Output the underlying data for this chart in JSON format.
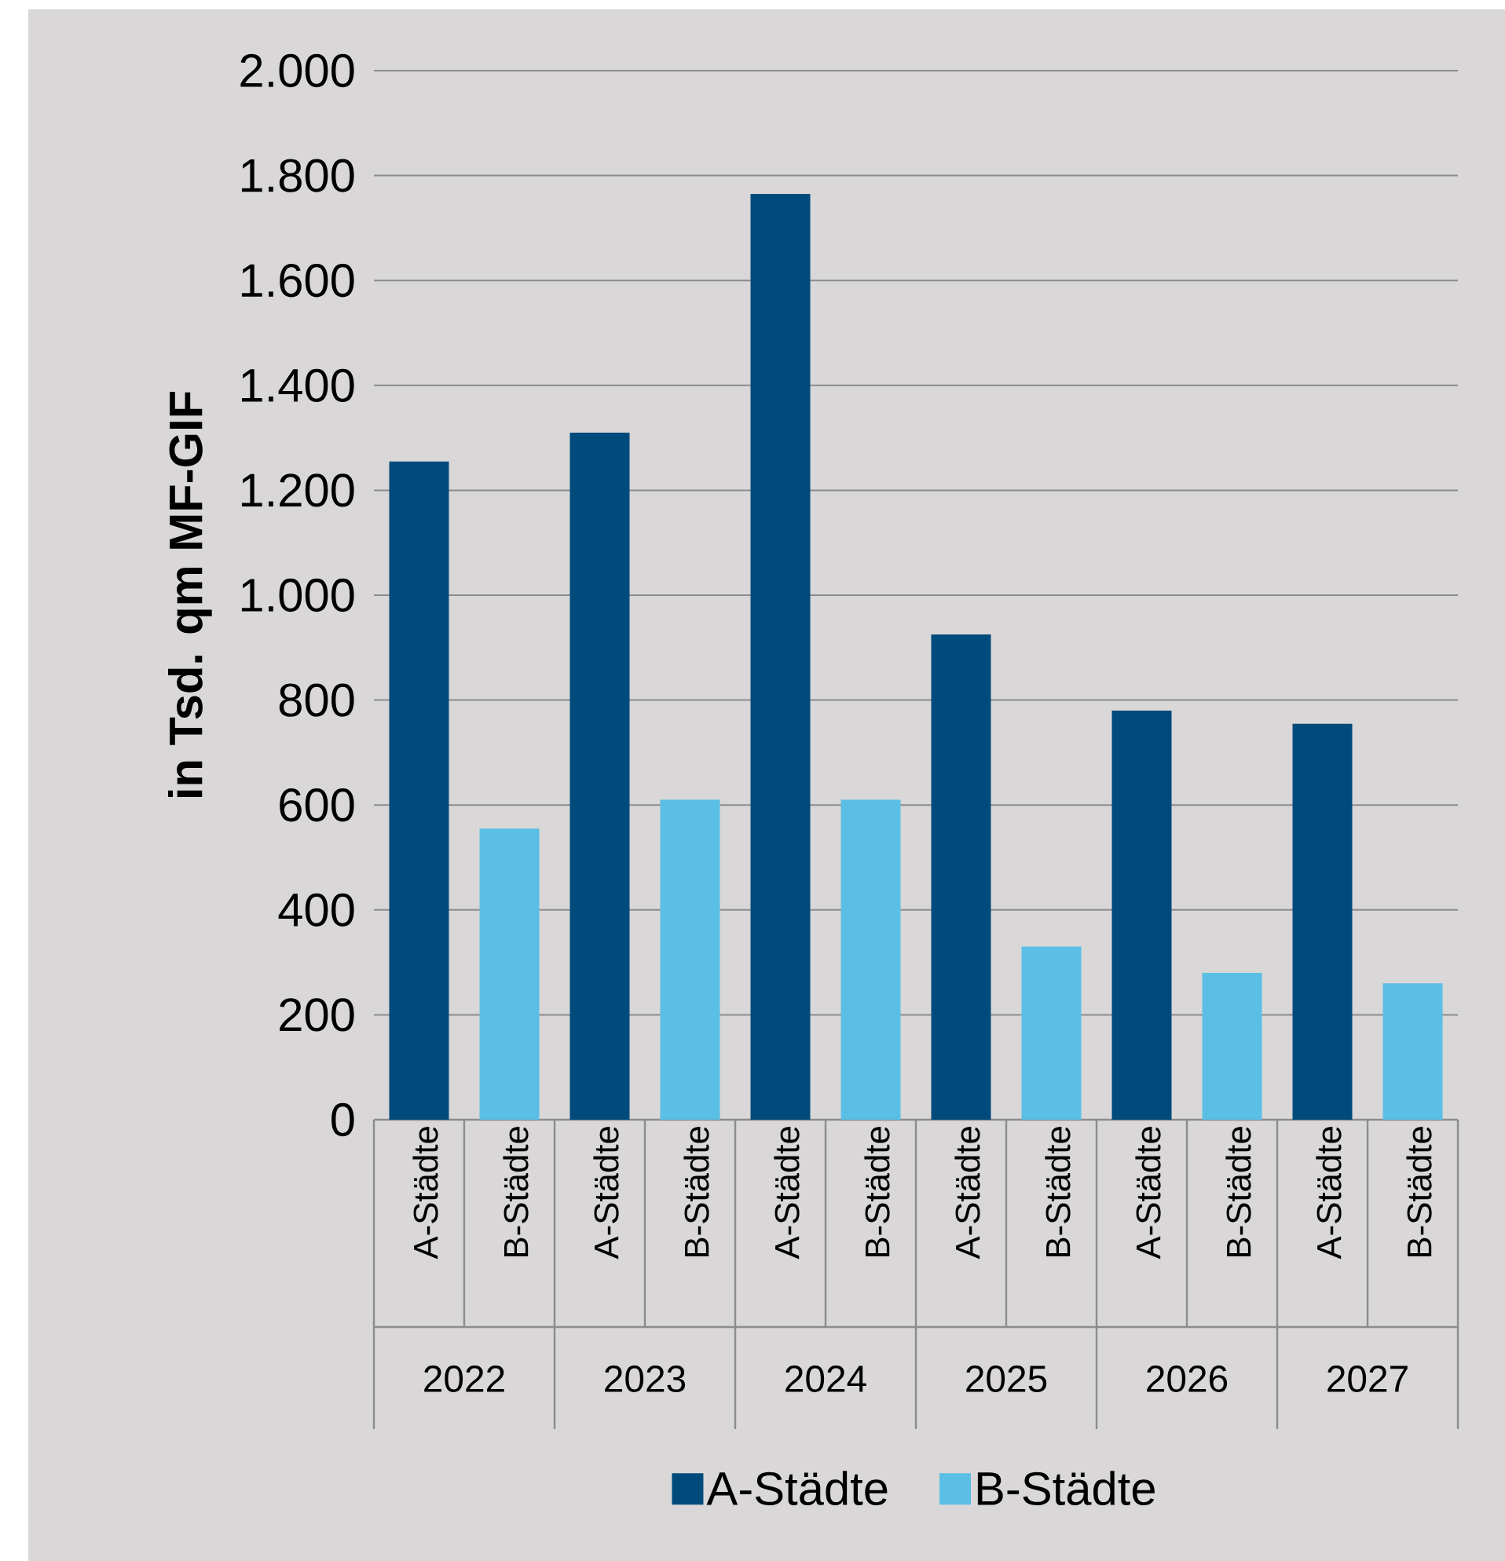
{
  "chart_data": {
    "type": "bar",
    "ylabel": "in Tsd. qm MF-GIF",
    "categories": [
      "A-Städte",
      "B-Städte",
      "A-Städte",
      "B-Städte",
      "A-Städte",
      "B-Städte",
      "A-Städte",
      "B-Städte",
      "A-Städte",
      "B-Städte",
      "A-Städte",
      "B-Städte"
    ],
    "series": [
      {
        "name": "A-Städte",
        "color": "#004b7c",
        "values": [
          1255,
          null,
          1310,
          null,
          1765,
          null,
          925,
          null,
          780,
          null,
          755,
          null
        ]
      },
      {
        "name": "B-Städte",
        "color": "#5bbfe5",
        "values": [
          null,
          555,
          null,
          610,
          null,
          610,
          null,
          330,
          null,
          280,
          null,
          260
        ]
      }
    ],
    "ylim": [
      0,
      2000
    ],
    "yticks": [
      0,
      200,
      400,
      600,
      800,
      {
        "value": 1000,
        "label": "1.000"
      },
      {
        "value": 1200,
        "label": "1.200"
      },
      {
        "value": 1400,
        "label": "1.400"
      },
      {
        "value": 1600,
        "label": "1.600"
      },
      {
        "value": 1800,
        "label": "1.800"
      },
      {
        "value": 2000,
        "label": "2.000"
      }
    ],
    "grid": "y",
    "legend": "bottom",
    "annotations": [
      "2022",
      "2023",
      "2024",
      "2025",
      "2026",
      "2027"
    ]
  }
}
